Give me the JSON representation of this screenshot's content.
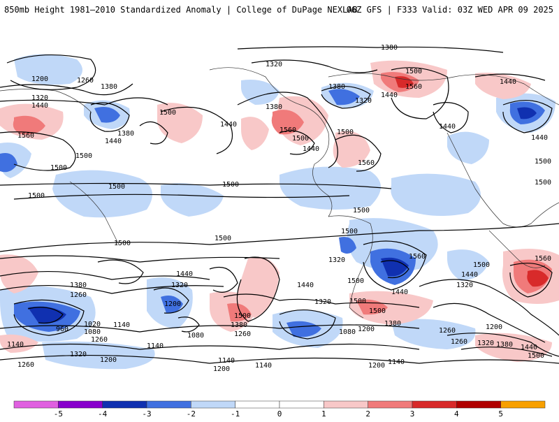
{
  "header": {
    "left_title": "850mb Height 1981–2010 Standardized Anomaly | College of DuPage NEXLAB",
    "right_title": "06Z GFS | F333 Valid: 03Z WED APR 09 2025"
  },
  "colors": {
    "neg5": "#e060e0",
    "neg4": "#8800cc",
    "neg3": "#1030b0",
    "neg2": "#4070e0",
    "neg1": "#c0d8f8",
    "zero": "#ffffff",
    "pos1": "#f8c8c8",
    "pos2": "#f07a7a",
    "pos3": "#d82a2a",
    "pos4": "#b00000",
    "pos5": "#f8a000"
  },
  "colorbar": {
    "labels": [
      "-5",
      "-4",
      "-3",
      "-2",
      "-1",
      "0",
      "1",
      "2",
      "3",
      "4",
      "5"
    ]
  },
  "contours": {
    "c1380_top": "1380",
    "c1320_a": "1320",
    "c1200_a": "1200",
    "c1260_a": "1260",
    "c1380_a": "1380",
    "c1320_b": "1320",
    "c1440_a": "1440",
    "c1560_a": "1560",
    "c1380_b": "1380",
    "c1440_b": "1440",
    "c1500_a": "1500",
    "c1500_b": "1500",
    "c1440_c": "1440",
    "c1500_c": "1500",
    "c1500_d": "1500",
    "c1560_b": "1560",
    "c1500_e": "1500",
    "c1440_d": "1440",
    "c1560_c": "1560",
    "c1380_c": "1380",
    "c1320_c": "1320",
    "c1500_f": "1500",
    "c1440_e": "1440",
    "c1560_d": "1560",
    "c1500_g": "1500",
    "c1440_f": "1440",
    "c1500_h": "1500",
    "c1500_i": "1500",
    "c1500_j": "1500",
    "c1500_k": "1500",
    "c1500_l": "1500",
    "c1500_m": "1500",
    "c1500_n": "1500",
    "c1500_o": "1500",
    "c1440_g": "1440",
    "c1380_d": "1380",
    "c1260_b": "1260",
    "c1200_b": "1200",
    "c1320_d": "1320",
    "c1440_h": "1440",
    "c1020": "1020",
    "c1080_a": "1080",
    "c960": "960",
    "c1260_c": "1260",
    "c1140_a": "1140",
    "c1140_b": "1140",
    "c1200_c": "1200",
    "c1320_e": "1320",
    "c1080_b": "1080",
    "c1500_p": "1500",
    "c1380_e": "1380",
    "c1260_d": "1260",
    "c1440_i": "1440",
    "c1320_f": "1320",
    "c1500_q": "1500",
    "c1380_f": "1380",
    "c1080_c": "1080",
    "c1200_d": "1200",
    "c1140_c": "1140",
    "c1140_d": "1140",
    "c1200_e": "1200",
    "c1140_e": "1140",
    "c1440_j": "1440",
    "c1500_r": "1500",
    "c1500_s": "1500",
    "c1440_k": "1440",
    "c1320_g": "1320",
    "c1560_e": "1560",
    "c1260_e": "1260",
    "c1200_f": "1200",
    "c1260_f": "1260",
    "c1320_h": "1320",
    "c1380_g": "1380",
    "c1440_l": "1440",
    "c1500_t": "1500",
    "c1500_u": "1500",
    "c1560_f": "1560",
    "c1440_m": "1440",
    "c1500_v": "1500",
    "c1140_f": "1140",
    "c1200_g": "1200",
    "c1260_g": "1260",
    "c1320_i": "1320"
  }
}
